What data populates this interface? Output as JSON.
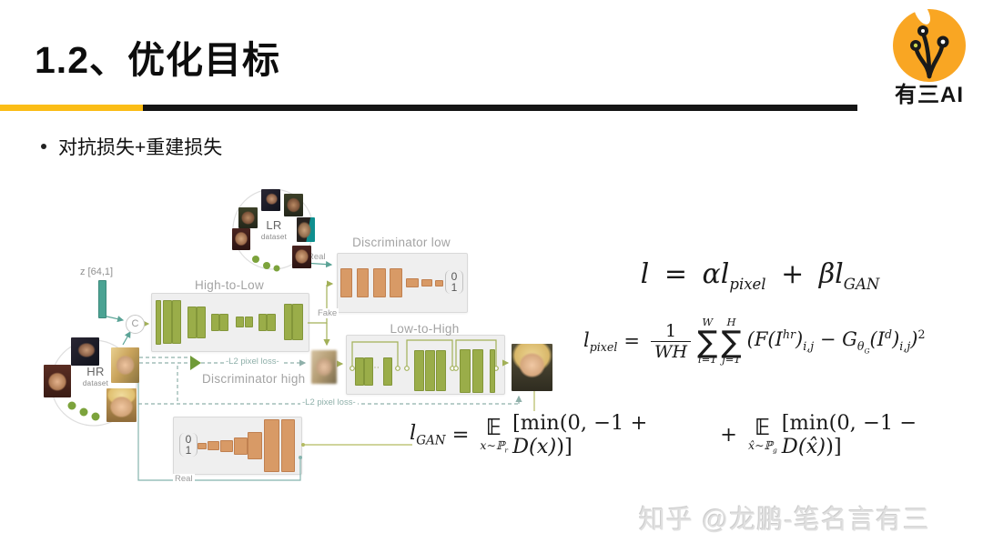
{
  "header": {
    "title": "1.2、优化目标",
    "logo_text": "有三AI"
  },
  "bullet": {
    "text": "对抗损失+重建损失"
  },
  "diagram": {
    "z_label": "z [64,1]",
    "lr_label": "LR",
    "lr_sublabel": "dataset",
    "hr_label": "HR",
    "hr_sublabel": "dataset",
    "c_label": "C",
    "high_to_low": "High-to-Low",
    "low_to_high": "Low-to-High",
    "discriminator_low": "Discriminator low",
    "discriminator_high": "Discriminator high",
    "real_top": "Real",
    "fake": "Fake",
    "real_bottom": "Real",
    "l2_loss_top": "-L2 pixel loss-",
    "l2_loss_bottom": "-L2 pixel loss-",
    "out_low": {
      "zero": "0",
      "one": "1"
    },
    "out_high": {
      "zero": "0",
      "one": "1"
    },
    "ellipsis": "⋯",
    "colors": {
      "green_bar": "#9aad49",
      "orange_bar": "#d89a66",
      "teal": "#4ba393",
      "accent_yellow": "#fbbd16",
      "box_bg": "#efefef"
    }
  },
  "formulas": {
    "f1": {
      "l": "l",
      "eq": "=",
      "alpha": "α",
      "lp": "l",
      "pixel": "pixel",
      "plus": "+",
      "beta": "β",
      "lg": "l",
      "gan": "GAN"
    },
    "f2": {
      "l": "l",
      "pixel": "pixel",
      "eq": "=",
      "one": "1",
      "wh": "WH",
      "sigma1": "∑",
      "w": "W",
      "i1": "i=1",
      "sigma2": "∑",
      "h": "H",
      "j1": "j=1",
      "b1": "(F(I",
      "hr": "hr",
      "b2": ")",
      "ij1": "i,j",
      "b3": " − ",
      "g": "G",
      "theta": "θ",
      "gsub": "G",
      "b4": "(I",
      "d": "d",
      "b5": ")",
      "ij2": "i,j",
      "b6": ")",
      "two": "2"
    },
    "f3": {
      "l": "l",
      "gan": "GAN",
      "eq": "=",
      "E1": "𝔼",
      "E1sub": "x∼ℙ",
      "E1subsub": "r",
      "m1": "[min(0, −1 + ",
      "dx": "D(x)",
      "m1end": ")]",
      "plus": "+",
      "E2": "𝔼",
      "E2sub": "x̂∼ℙ",
      "E2subsub": "g",
      "m2": "[min(0, −1 − ",
      "dxh": "D(x̂)",
      "m2end": ")]"
    }
  },
  "watermark": "知乎 @龙鹏-笔名言有三"
}
